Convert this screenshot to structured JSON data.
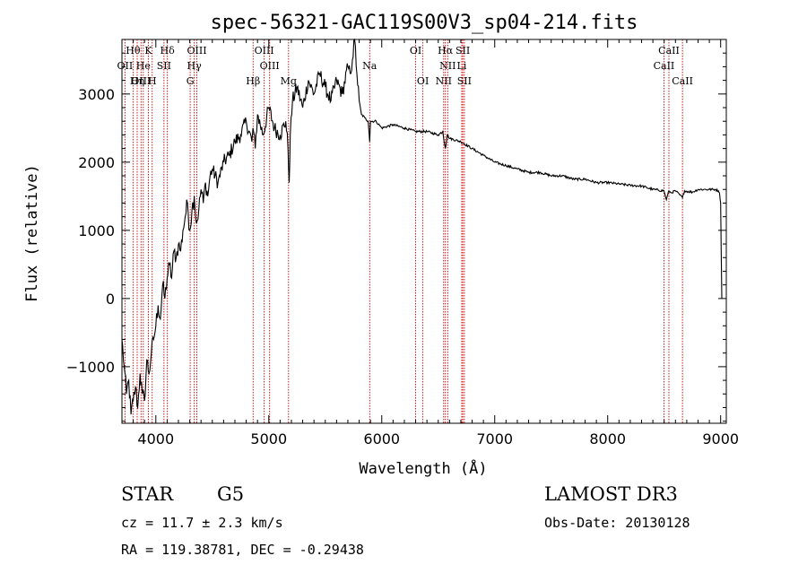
{
  "chart_data": {
    "type": "line",
    "title": "spec-56321-GAC119S00V3_sp04-214.fits",
    "xlabel": "Wavelength (Å)",
    "ylabel": "Flux (relative)",
    "xlim": [
      3700,
      9050
    ],
    "ylim": [
      -1830,
      3800
    ],
    "x_ticks": [
      4000,
      5000,
      6000,
      7000,
      8000,
      9000
    ],
    "y_ticks": [
      -1000,
      0,
      1000,
      2000,
      3000
    ],
    "tick_minor_x": 100,
    "tick_minor_y": 200,
    "line_color": "#000000",
    "marker_color": "#cc0000",
    "spectrum": {
      "x": [
        3700,
        3720,
        3740,
        3760,
        3780,
        3800,
        3820,
        3840,
        3860,
        3880,
        3900,
        3920,
        3940,
        3960,
        3980,
        4000,
        4020,
        4040,
        4060,
        4080,
        4100,
        4120,
        4140,
        4160,
        4180,
        4200,
        4220,
        4240,
        4260,
        4280,
        4300,
        4320,
        4340,
        4360,
        4380,
        4400,
        4420,
        4440,
        4460,
        4480,
        4500,
        4550,
        4600,
        4650,
        4700,
        4750,
        4800,
        4850,
        4860,
        4880,
        4900,
        4950,
        5000,
        5050,
        5100,
        5150,
        5170,
        5180,
        5190,
        5210,
        5250,
        5300,
        5350,
        5400,
        5450,
        5500,
        5550,
        5600,
        5650,
        5700,
        5720,
        5740,
        5760,
        5780,
        5800,
        5820,
        5850,
        5880,
        5893,
        5900,
        5950,
        6000,
        6100,
        6200,
        6300,
        6400,
        6500,
        6540,
        6563,
        6580,
        6600,
        6700,
        6800,
        6900,
        7000,
        7100,
        7200,
        7300,
        7400,
        7500,
        7600,
        7700,
        7800,
        7900,
        8000,
        8100,
        8200,
        8300,
        8400,
        8498,
        8520,
        8542,
        8560,
        8600,
        8662,
        8680,
        8750,
        8800,
        8850,
        8900,
        8950,
        8980,
        8990,
        9000,
        9010
      ],
      "y": [
        -600,
        -1000,
        -1400,
        -1200,
        -1700,
        -1500,
        -1300,
        -1600,
        -1100,
        -1400,
        -1500,
        -900,
        -1100,
        -800,
        -600,
        -400,
        -100,
        -300,
        200,
        0,
        300,
        500,
        300,
        700,
        600,
        800,
        700,
        1000,
        1200,
        1400,
        1000,
        1300,
        1500,
        1100,
        1300,
        1600,
        1400,
        1700,
        1500,
        1800,
        1900,
        1700,
        2000,
        2100,
        2300,
        2400,
        2600,
        2300,
        2500,
        2200,
        2700,
        2400,
        2800,
        2500,
        2400,
        2600,
        2200,
        1700,
        2400,
        2900,
        3100,
        2800,
        3200,
        3000,
        3300,
        3100,
        2900,
        3200,
        3000,
        3400,
        3300,
        3500,
        3800,
        3300,
        2900,
        2700,
        2650,
        2600,
        2300,
        2600,
        2600,
        2500,
        2550,
        2500,
        2450,
        2450,
        2400,
        2450,
        2200,
        2400,
        2350,
        2300,
        2200,
        2100,
        2000,
        1950,
        1900,
        1850,
        1850,
        1800,
        1800,
        1750,
        1750,
        1700,
        1700,
        1680,
        1660,
        1650,
        1600,
        1580,
        1450,
        1580,
        1550,
        1580,
        1480,
        1580,
        1560,
        1600,
        1600,
        1600,
        1600,
        1580,
        1550,
        1400,
        0
      ]
    },
    "line_markers": [
      {
        "label": "Hθ",
        "wavelength": 3798,
        "row": 0
      },
      {
        "label": "K",
        "wavelength": 3934,
        "row": 0
      },
      {
        "label": "Hδ",
        "wavelength": 4102,
        "row": 0
      },
      {
        "label": "OIII",
        "wavelength": 4363,
        "row": 0
      },
      {
        "label": "OIII",
        "wavelength": 4959,
        "row": 0
      },
      {
        "label": "OI",
        "wavelength": 6300,
        "row": 0
      },
      {
        "label": "Hα",
        "wavelength": 6563,
        "row": 0
      },
      {
        "label": "SII",
        "wavelength": 6717,
        "row": 0
      },
      {
        "label": "CaII",
        "wavelength": 8542,
        "row": 0
      },
      {
        "label": "OII",
        "wavelength": 3727,
        "row": 1
      },
      {
        "label": "He",
        "wavelength": 3889,
        "row": 1
      },
      {
        "label": "SII",
        "wavelength": 4072,
        "row": 1
      },
      {
        "label": "Hγ",
        "wavelength": 4340,
        "row": 1
      },
      {
        "label": "OIII",
        "wavelength": 5007,
        "row": 1
      },
      {
        "label": "Na",
        "wavelength": 5893,
        "row": 1
      },
      {
        "label": "NII",
        "wavelength": 6584,
        "row": 1
      },
      {
        "label": "Li",
        "wavelength": 6708,
        "row": 1
      },
      {
        "label": "CaII",
        "wavelength": 8498,
        "row": 1
      },
      {
        "label": "OIII",
        "wavelength": 3869,
        "row": 2
      },
      {
        "label": "Hη",
        "wavelength": 3835,
        "row": 2
      },
      {
        "label": "H",
        "wavelength": 3968,
        "row": 2
      },
      {
        "label": "G",
        "wavelength": 4304,
        "row": 2
      },
      {
        "label": "Hβ",
        "wavelength": 4861,
        "row": 2
      },
      {
        "label": "Mg",
        "wavelength": 5175,
        "row": 2
      },
      {
        "label": "OI",
        "wavelength": 6364,
        "row": 2
      },
      {
        "label": "NII",
        "wavelength": 6548,
        "row": 2
      },
      {
        "label": "SII",
        "wavelength": 6731,
        "row": 2
      },
      {
        "label": "CaII",
        "wavelength": 8662,
        "row": 2
      }
    ]
  },
  "info": {
    "object_class": "STAR",
    "subclass": "G5",
    "cz": "cz = 11.7 ± 2.3 km/s",
    "coords": "RA = 119.38781, DEC =  -0.29438",
    "survey": "LAMOST DR3",
    "obs_date": "Obs-Date: 20130128"
  }
}
